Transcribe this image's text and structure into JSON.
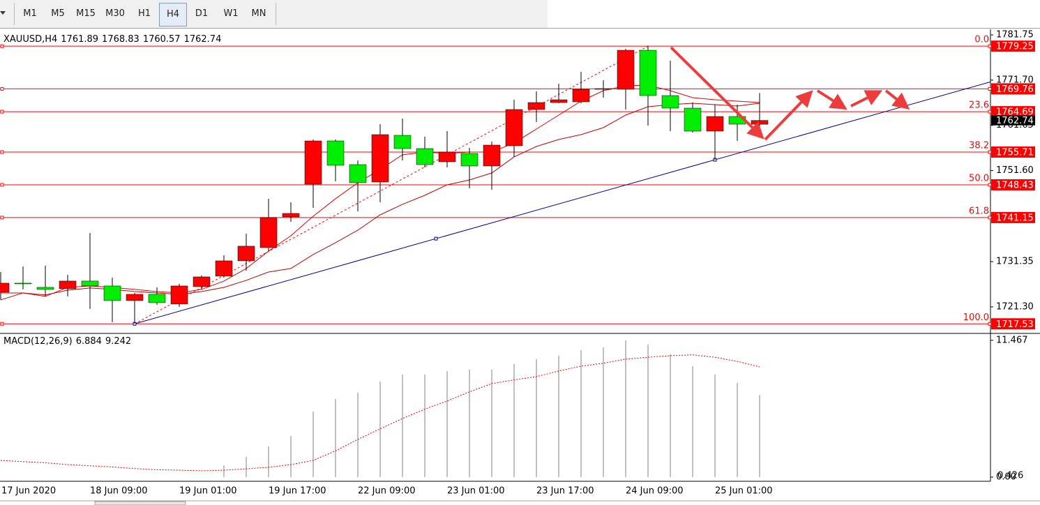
{
  "toolbar": {
    "buttons": [
      "M1",
      "M5",
      "M15",
      "M30",
      "H1",
      "H4",
      "D1",
      "W1",
      "MN"
    ],
    "active": 5
  },
  "chart_data": [
    {
      "type": "candlestick",
      "title": "XAUUSD,H4",
      "categories": [
        "17 Jun 2020",
        null,
        null,
        null,
        "18 Jun 09:00",
        null,
        null,
        null,
        "19 Jun 01:00",
        null,
        null,
        null,
        "19 Jun 17:00",
        null,
        null,
        null,
        "22 Jun 09:00",
        null,
        null,
        null,
        "23 Jun 01:00",
        null,
        null,
        null,
        "23 Jun 17:00",
        null,
        null,
        null,
        "24 Jun 09:00",
        null,
        null,
        null,
        "25 Jun 01:00",
        null,
        null
      ],
      "open": [
        1724.56,
        1726.57,
        1725.64,
        1725.33,
        1727.04,
        1725.95,
        1722.7,
        1724.09,
        1721.92,
        1725.8,
        1728.12,
        1731.53,
        1734.48,
        1741.3,
        1748.58,
        1758.19,
        1752.92,
        1749.05,
        1759.43,
        1756.49,
        1753.54,
        1755.4,
        1752.61,
        1757.11,
        1765.17,
        1766.72,
        1766.87,
        1769.66,
        1769.66,
        1778.34,
        1768.27,
        1765.48,
        1760.36,
        1763.62,
        1761.89
      ],
      "high": [
        1729.05,
        1730.29,
        1730.45,
        1728.43,
        1737.73,
        1727.81,
        1724.4,
        1725.64,
        1726.42,
        1728.28,
        1732.77,
        1737.58,
        1745.33,
        1744.55,
        1758.5,
        1758.5,
        1753.85,
        1761.91,
        1763.15,
        1759.12,
        1760.36,
        1756.64,
        1758.04,
        1767.34,
        1769.2,
        1770.9,
        1773.54,
        1771.68,
        1778.65,
        1779.25,
        1776.02,
        1766.72,
        1766.25,
        1766.25,
        1768.83
      ],
      "low": [
        1722.85,
        1725.18,
        1723.63,
        1723.63,
        1720.84,
        1717.89,
        1717.53,
        1721.77,
        1721.3,
        1725.18,
        1727.81,
        1729.36,
        1733.7,
        1740.21,
        1743.31,
        1749.2,
        1742.53,
        1744.55,
        1753.85,
        1752.3,
        1752.3,
        1747.65,
        1747.34,
        1754.63,
        1762.38,
        1766.56,
        1766.56,
        1767.8,
        1765.17,
        1761.6,
        1760.36,
        1760.05,
        1754.0,
        1758.19,
        1760.57
      ],
      "close": [
        1726.57,
        1726.42,
        1725.18,
        1727.04,
        1725.95,
        1722.7,
        1724.09,
        1722.23,
        1725.95,
        1727.97,
        1731.53,
        1734.79,
        1741.14,
        1742.07,
        1758.19,
        1752.77,
        1748.89,
        1759.59,
        1756.49,
        1752.92,
        1755.71,
        1752.61,
        1757.26,
        1765.17,
        1766.72,
        1767.34,
        1769.66,
        1769.82,
        1778.34,
        1768.27,
        1765.48,
        1760.36,
        1763.62,
        1761.91,
        1762.74
      ],
      "up_color": "#ff0000",
      "down_color": "#00ee00",
      "series": [
        {
          "color": "#e00000",
          "values": [
            1724.4,
            1724.4,
            1723.63,
            1725.64,
            1725.95,
            1725.64,
            1725.18,
            1724.71,
            1724.4,
            1725.18,
            1727.04,
            1729.83,
            1733.7,
            1737.11,
            1741.45,
            1745.33,
            1748.89,
            1751.84,
            1755.09,
            1755.71,
            1755.4,
            1755.71,
            1755.71,
            1757.73,
            1760.83,
            1763.93,
            1767.03,
            1769.35,
            1770.44,
            1770.59,
            1769.35,
            1767.8,
            1767.34,
            1767.03,
            1766.72
          ]
        },
        {
          "color": "#c00000",
          "values": [
            1722.85,
            1724.4,
            1723.94,
            1725.02,
            1725.49,
            1725.18,
            1724.71,
            1724.4,
            1724.09,
            1724.71,
            1725.64,
            1727.19,
            1729.05,
            1729.83,
            1732.93,
            1735.56,
            1738.35,
            1741.76,
            1744.09,
            1746.1,
            1748.43,
            1749.51,
            1751.06,
            1754.63,
            1756.95,
            1758.5,
            1759.59,
            1761.14,
            1763.93,
            1765.79,
            1766.25,
            1766.56,
            1766.25,
            1765.94,
            1766.56
          ]
        }
      ],
      "ylim": [
        1715.4,
        1783.0
      ],
      "yticks": [
        1781.75,
        {
          "value": 1771.7,
          "label": "1771.70"
        },
        1761.65,
        {
          "value": 1751.6,
          "label": "1751.60"
        },
        1731.35,
        {
          "value": 1721.3,
          "label": "1721.30"
        }
      ],
      "grid": false,
      "fib_levels": [
        {
          "value": 1779.25,
          "label": "0.0"
        },
        {
          "value": 1769.76
        },
        {
          "value": 1764.69,
          "label": "23.6"
        },
        {
          "value": 1755.71,
          "label": "38.2"
        },
        {
          "value": 1748.43,
          "label": "50.0"
        },
        {
          "value": 1741.15,
          "label": "61.8"
        },
        {
          "value": 1717.53,
          "label": "100.0"
        }
      ],
      "fib_color": "#ff0000",
      "trendline": {
        "color": "#00008b",
        "start": 1717.53,
        "end": 1754.0
      }
    },
    {
      "type": "macd",
      "title": "MACD(12,26,9)",
      "series": [
        {
          "style": "bar",
          "color": "#c0c0c0",
          "values": [
            null,
            null,
            null,
            null,
            null,
            null,
            null,
            null,
            null,
            null,
            0.99,
            1.7,
            2.57,
            3.45,
            5.5,
            6.55,
            7.08,
            8.01,
            8.6,
            8.6,
            8.89,
            9.01,
            9.01,
            9.48,
            9.89,
            10.18,
            10.65,
            10.88,
            11.47,
            11.12,
            10.3,
            9.3,
            8.6,
            7.9,
            6.884
          ]
        },
        {
          "style": "dotted",
          "color": "#e00000",
          "values": [
            1.4,
            1.3,
            1.2,
            1.05,
            0.95,
            0.85,
            0.72,
            0.62,
            0.58,
            0.53,
            0.58,
            0.7,
            0.82,
            1.05,
            1.4,
            2.2,
            3.16,
            4.05,
            4.91,
            5.7,
            6.38,
            7.15,
            7.84,
            8.15,
            8.42,
            8.9,
            9.3,
            9.55,
            9.89,
            10.05,
            10.18,
            10.25,
            10.05,
            9.7,
            9.242
          ]
        }
      ],
      "ylim": [
        -0.35,
        11.93
      ],
      "yticks": [
        11.467,
        {
          "value": 0,
          "label": "0.00"
        }
      ],
      "overlap_label": "0.426"
    }
  ]
}
